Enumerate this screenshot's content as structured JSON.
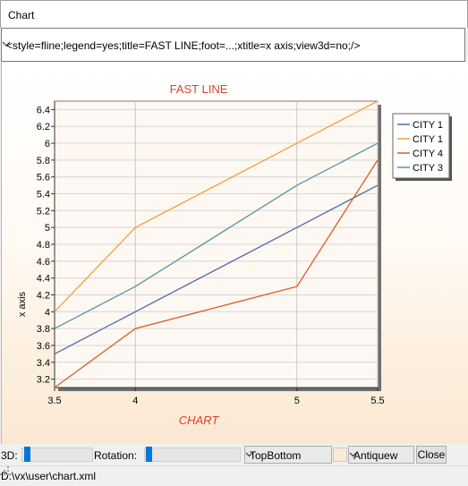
{
  "window": {
    "title": "Chart"
  },
  "query": {
    "value": "<style=fline;legend=yes;title=FAST LINE;foot=...;xtitle=x axis;view3d=no;/>"
  },
  "chart_data": {
    "type": "line",
    "title": "FAST LINE",
    "footer": "CHART",
    "xlabel": "",
    "ylabel": "x axis",
    "xlim": [
      3.5,
      5.5
    ],
    "ylim": [
      3.1,
      6.5
    ],
    "x_ticks": [
      "3.5",
      "4",
      "5",
      "5.5"
    ],
    "y_ticks": [
      "3.2",
      "3.4",
      "3.6",
      "3.8",
      "4",
      "4.2",
      "4.4",
      "4.6",
      "4.8",
      "5",
      "5.2",
      "5.4",
      "5.6",
      "5.8",
      "6",
      "6.2",
      "6.4"
    ],
    "grid": true,
    "legend_position": "right",
    "series": [
      {
        "name": "CITY 1",
        "color": "#4f6aa8",
        "x": [
          3.5,
          4,
          5,
          5.5
        ],
        "y": [
          3.5,
          4.0,
          5.0,
          5.5
        ]
      },
      {
        "name": "CITY 1",
        "color": "#f0a040",
        "x": [
          3.5,
          4,
          5,
          5.5
        ],
        "y": [
          4.0,
          5.0,
          6.0,
          6.5
        ]
      },
      {
        "name": "CITY 4",
        "color": "#e05a2a",
        "x": [
          3.5,
          4,
          5,
          5.5
        ],
        "y": [
          3.1,
          3.8,
          4.3,
          5.8
        ]
      },
      {
        "name": "CITY 3",
        "color": "#5a93a8",
        "x": [
          3.5,
          4,
          5,
          5.5
        ],
        "y": [
          3.8,
          4.3,
          5.5,
          6.0
        ]
      }
    ]
  },
  "controls": {
    "label_3d": "3D:",
    "label_rotation": "Rotation:",
    "gradient_value": "TopBottom",
    "color_value": "Antiquew",
    "close_label": "Close"
  },
  "status": {
    "path": "D:\\vx\\user\\chart.xml"
  }
}
